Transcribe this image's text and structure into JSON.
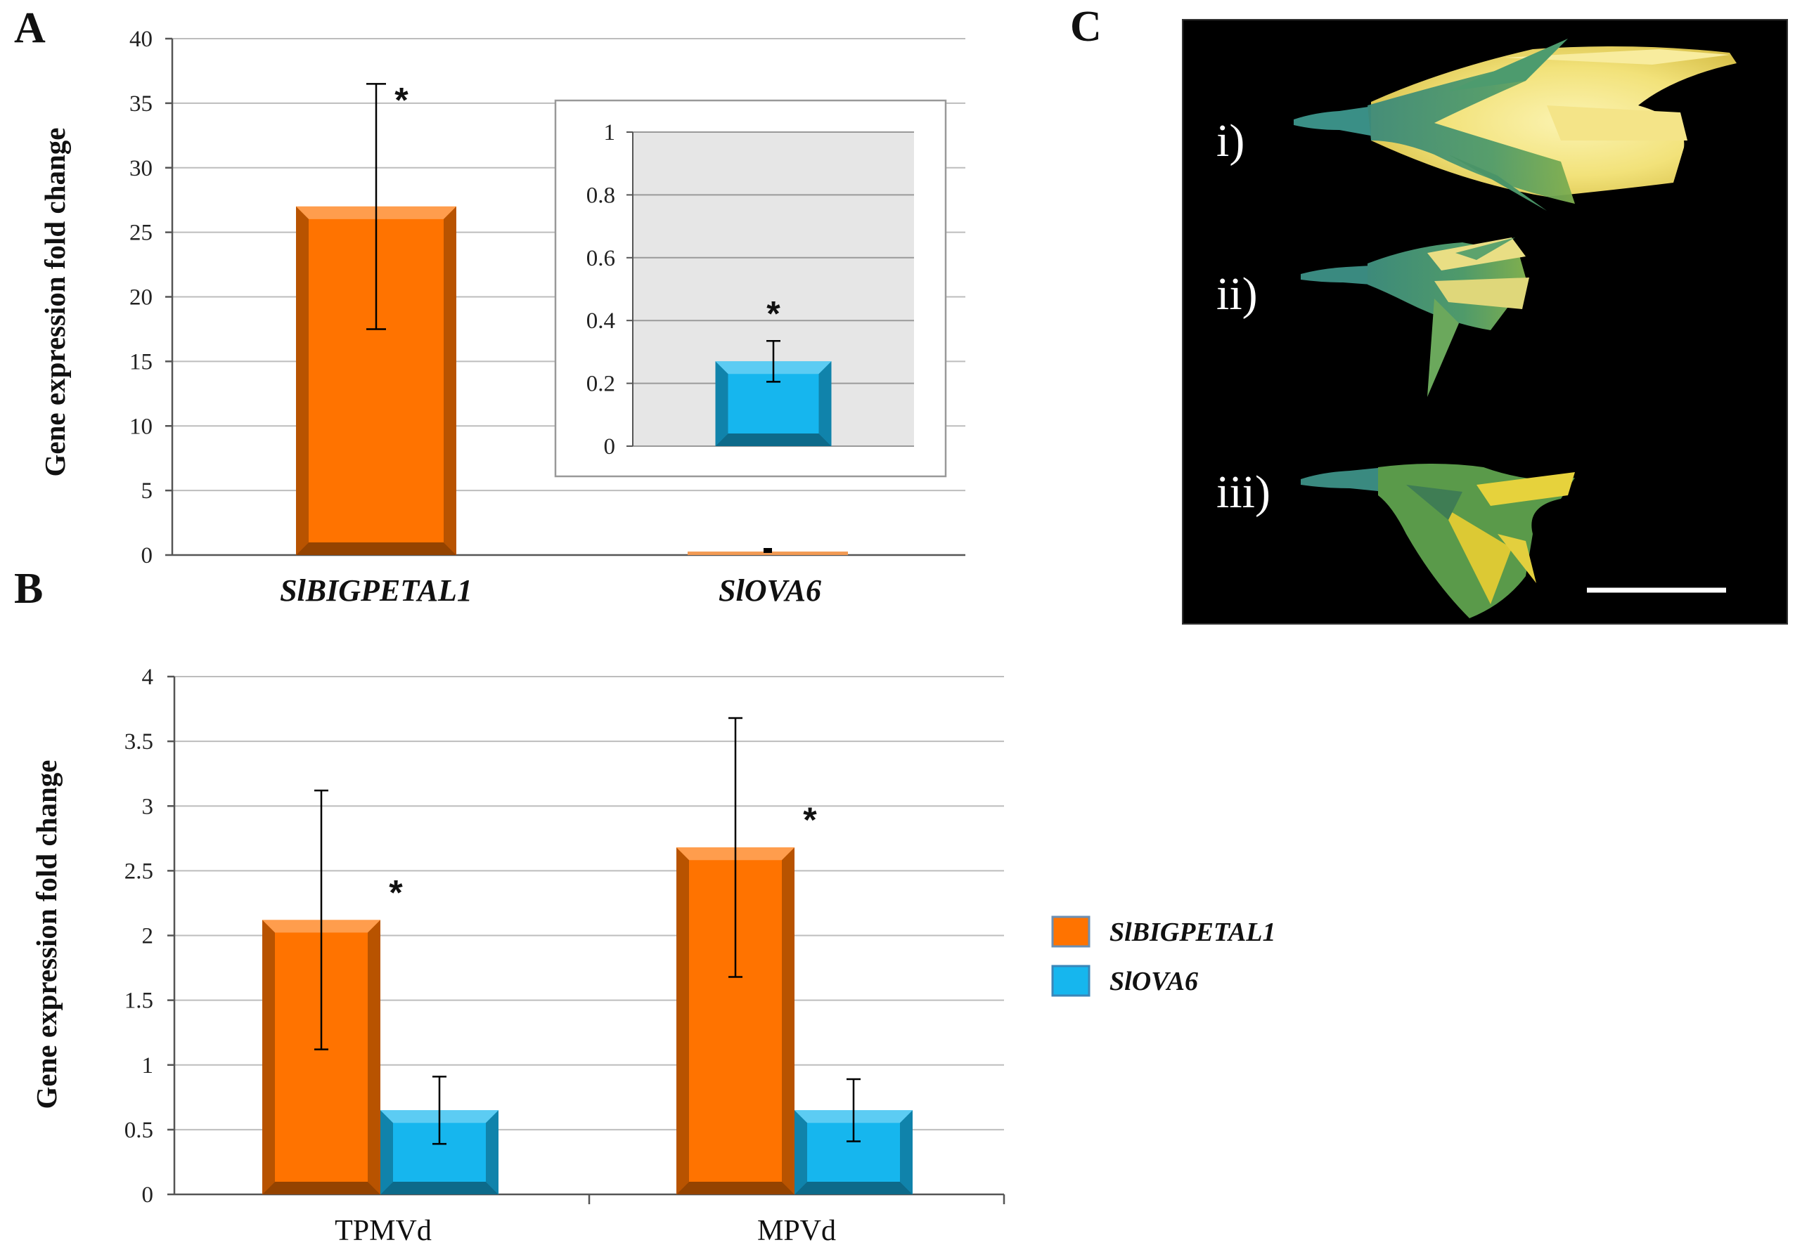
{
  "panels": {
    "A": {
      "letter": "A",
      "ylabel": "Gene expression fold change",
      "yticks": [
        "0",
        "5",
        "10",
        "15",
        "20",
        "25",
        "30",
        "35",
        "40"
      ],
      "categories": [
        "SlBIGPETAL1",
        "SlOVA6"
      ],
      "significance": "*",
      "inset": {
        "yticks": [
          "0",
          "0.2",
          "0.4",
          "0.6",
          "0.8",
          "1"
        ],
        "significance": "*"
      }
    },
    "B": {
      "letter": "B",
      "ylabel": "Gene expression fold change",
      "yticks": [
        "0",
        "0.5",
        "1",
        "1.5",
        "2",
        "2.5",
        "3",
        "3.5",
        "4"
      ],
      "categories": [
        "TPMVd",
        "MPVd"
      ],
      "significance": "*",
      "legend": [
        "SlBIGPETAL1",
        "SlOVA6"
      ]
    },
    "C": {
      "letter": "C",
      "labels": [
        "i)",
        "ii)",
        "iii)"
      ]
    }
  },
  "colors": {
    "orange": "#ff7300",
    "blue": "#16b6ee",
    "photo_background": "#000000"
  },
  "chart_data": [
    {
      "panel": "A",
      "type": "bar",
      "title": "",
      "xlabel": "",
      "ylabel": "Gene expression fold change",
      "categories": [
        "SlBIGPETAL1",
        "SlOVA6"
      ],
      "values": [
        27,
        0.27
      ],
      "errors": [
        9.5,
        0.065
      ],
      "bar_colors": [
        "#ff7300",
        "#16b6ee"
      ],
      "significant": [
        true,
        true
      ],
      "ylim": [
        0,
        40
      ],
      "grid": true,
      "inset": {
        "category": "SlOVA6",
        "value": 0.27,
        "error": 0.065,
        "ylim": [
          0,
          1
        ]
      }
    },
    {
      "panel": "B",
      "type": "bar",
      "title": "",
      "xlabel": "",
      "ylabel": "Gene expression fold change",
      "categories": [
        "TPMVd",
        "MPVd"
      ],
      "series": [
        {
          "name": "SlBIGPETAL1",
          "color": "#ff7300",
          "values": [
            2.12,
            2.68
          ],
          "errors": [
            1.0,
            1.0
          ],
          "significant": [
            true,
            true
          ]
        },
        {
          "name": "SlOVA6",
          "color": "#16b6ee",
          "values": [
            0.65,
            0.65
          ],
          "errors": [
            0.26,
            0.24
          ],
          "significant": [
            false,
            false
          ]
        }
      ],
      "ylim": [
        0,
        4
      ],
      "grid": true,
      "legend": "right"
    }
  ]
}
